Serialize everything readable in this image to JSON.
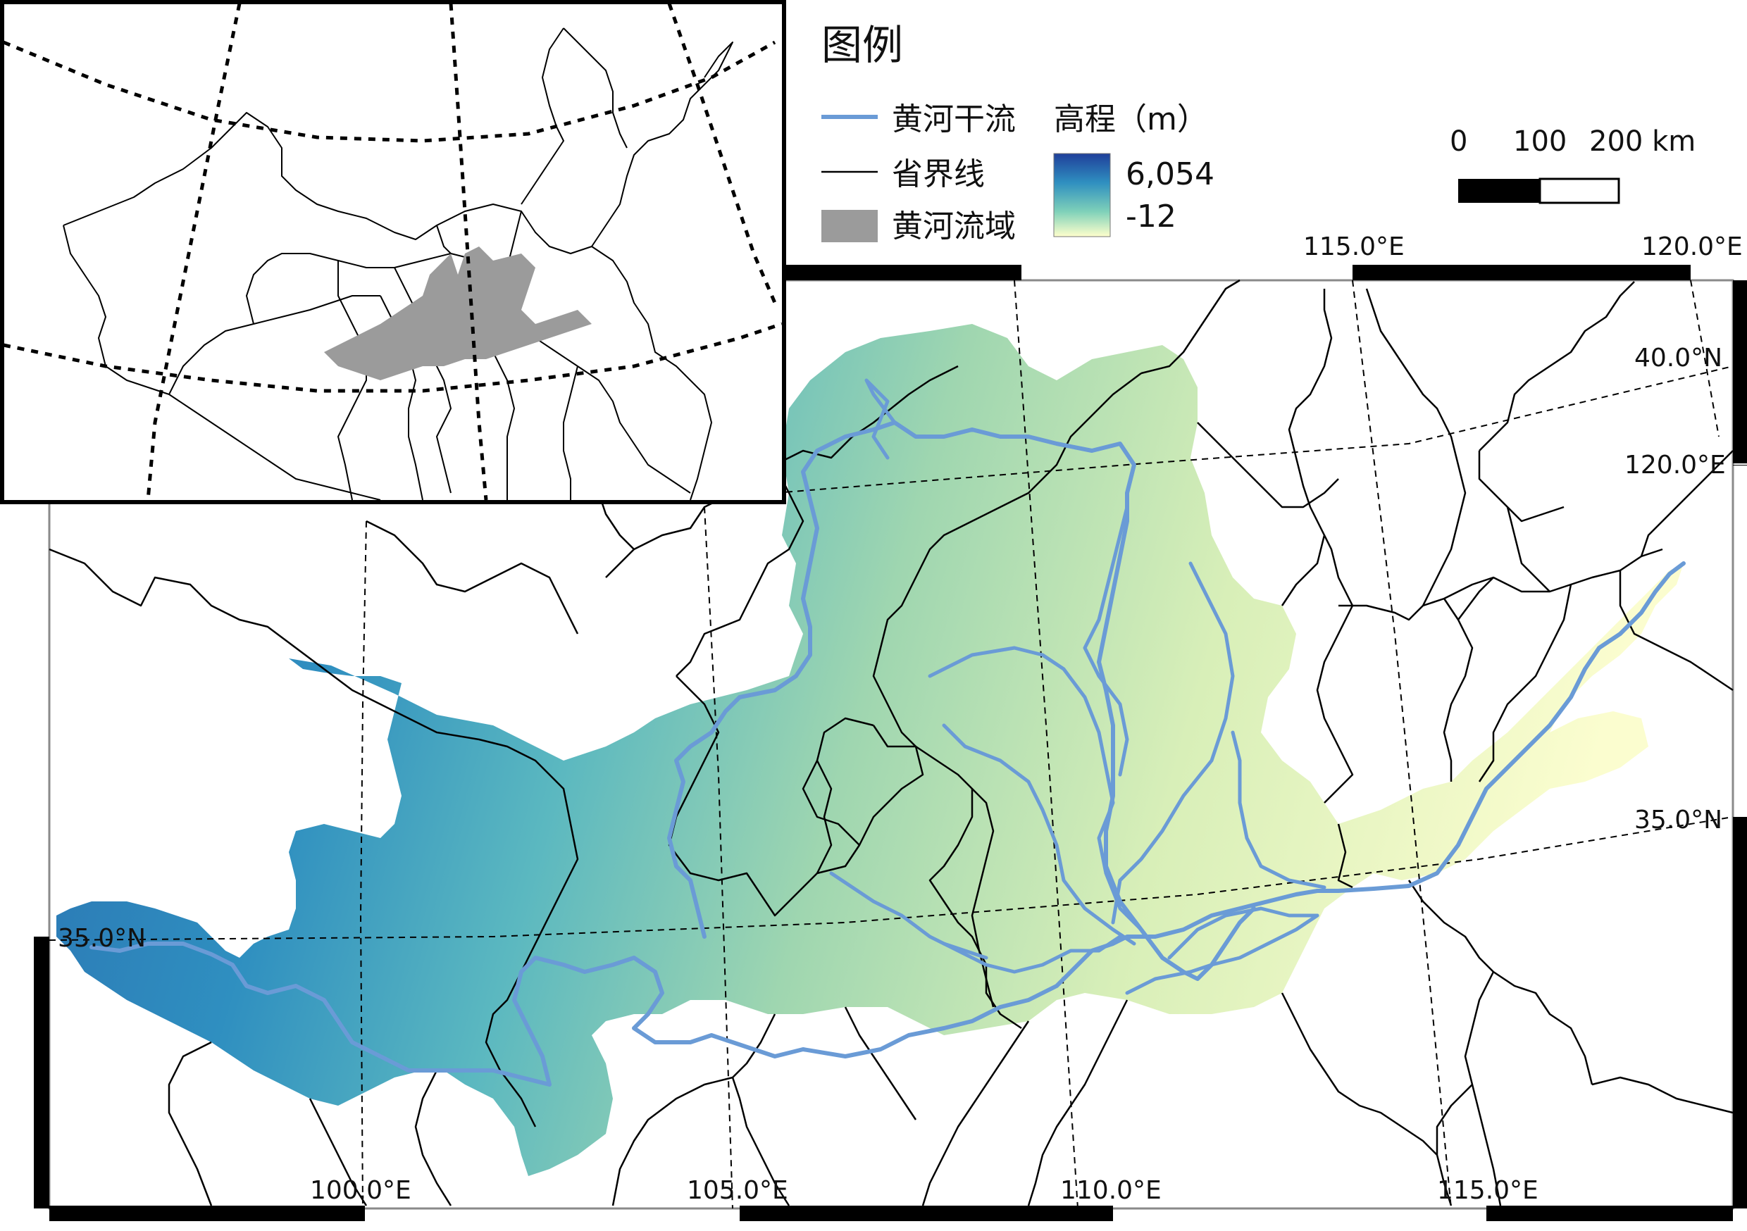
{
  "legend": {
    "title": "图例",
    "items": [
      {
        "label": "黄河干流",
        "symbol": "line",
        "color": "#6a9bd6"
      },
      {
        "label": "省界线",
        "symbol": "line",
        "color": "#000000"
      },
      {
        "label": "黄河流域",
        "symbol": "patch",
        "color": "#9b9b9b"
      }
    ],
    "elevation": {
      "title": "高程（m）",
      "max": "6,054",
      "min": "-12",
      "colors": [
        "#1f3f9a",
        "#2f8fc0",
        "#7fd1b9",
        "#ffffcc"
      ]
    }
  },
  "scale_bar": {
    "labels": [
      "0",
      "100",
      "200 km"
    ]
  },
  "graticule": {
    "bottom_lon": [
      "100.0°E",
      "105.0°E",
      "110.0°E",
      "115.0°E"
    ],
    "top_lon": [
      "115.0°E",
      "120.0°E"
    ],
    "right_lat": [
      "40.0°N",
      "120.0°E",
      "35.0°N"
    ],
    "left_lat": [
      "35.0°N"
    ],
    "inset_partial": "40.0°N"
  },
  "colors": {
    "river": "#6a9bd6",
    "border": "#000000",
    "basin_inset": "#9b9b9b"
  }
}
